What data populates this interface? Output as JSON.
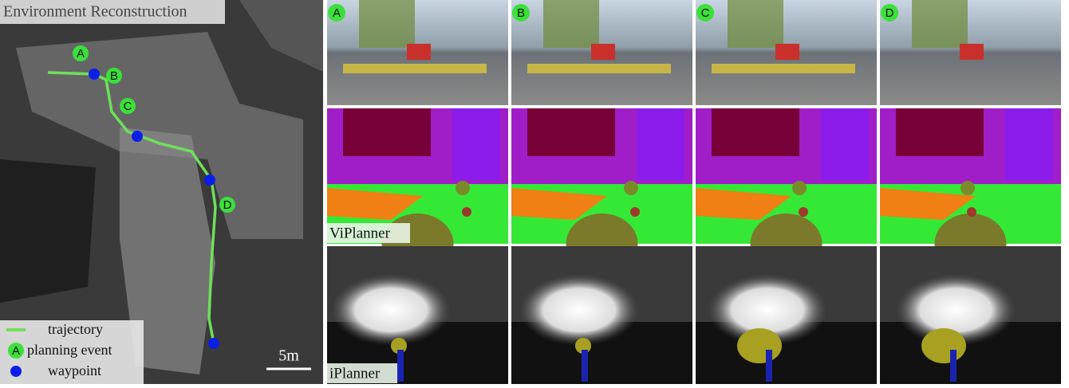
{
  "map": {
    "title": "Environment Reconstruction",
    "events": [
      "A",
      "B",
      "C",
      "D"
    ],
    "legend": {
      "trajectory": "trajectory",
      "marker": "A",
      "planning_event": "planning event",
      "waypoint": "waypoint"
    },
    "scale": "5m"
  },
  "columns": [
    "A",
    "B",
    "C",
    "D"
  ],
  "rows": [
    "ViPlanner",
    "iPlanner"
  ]
}
